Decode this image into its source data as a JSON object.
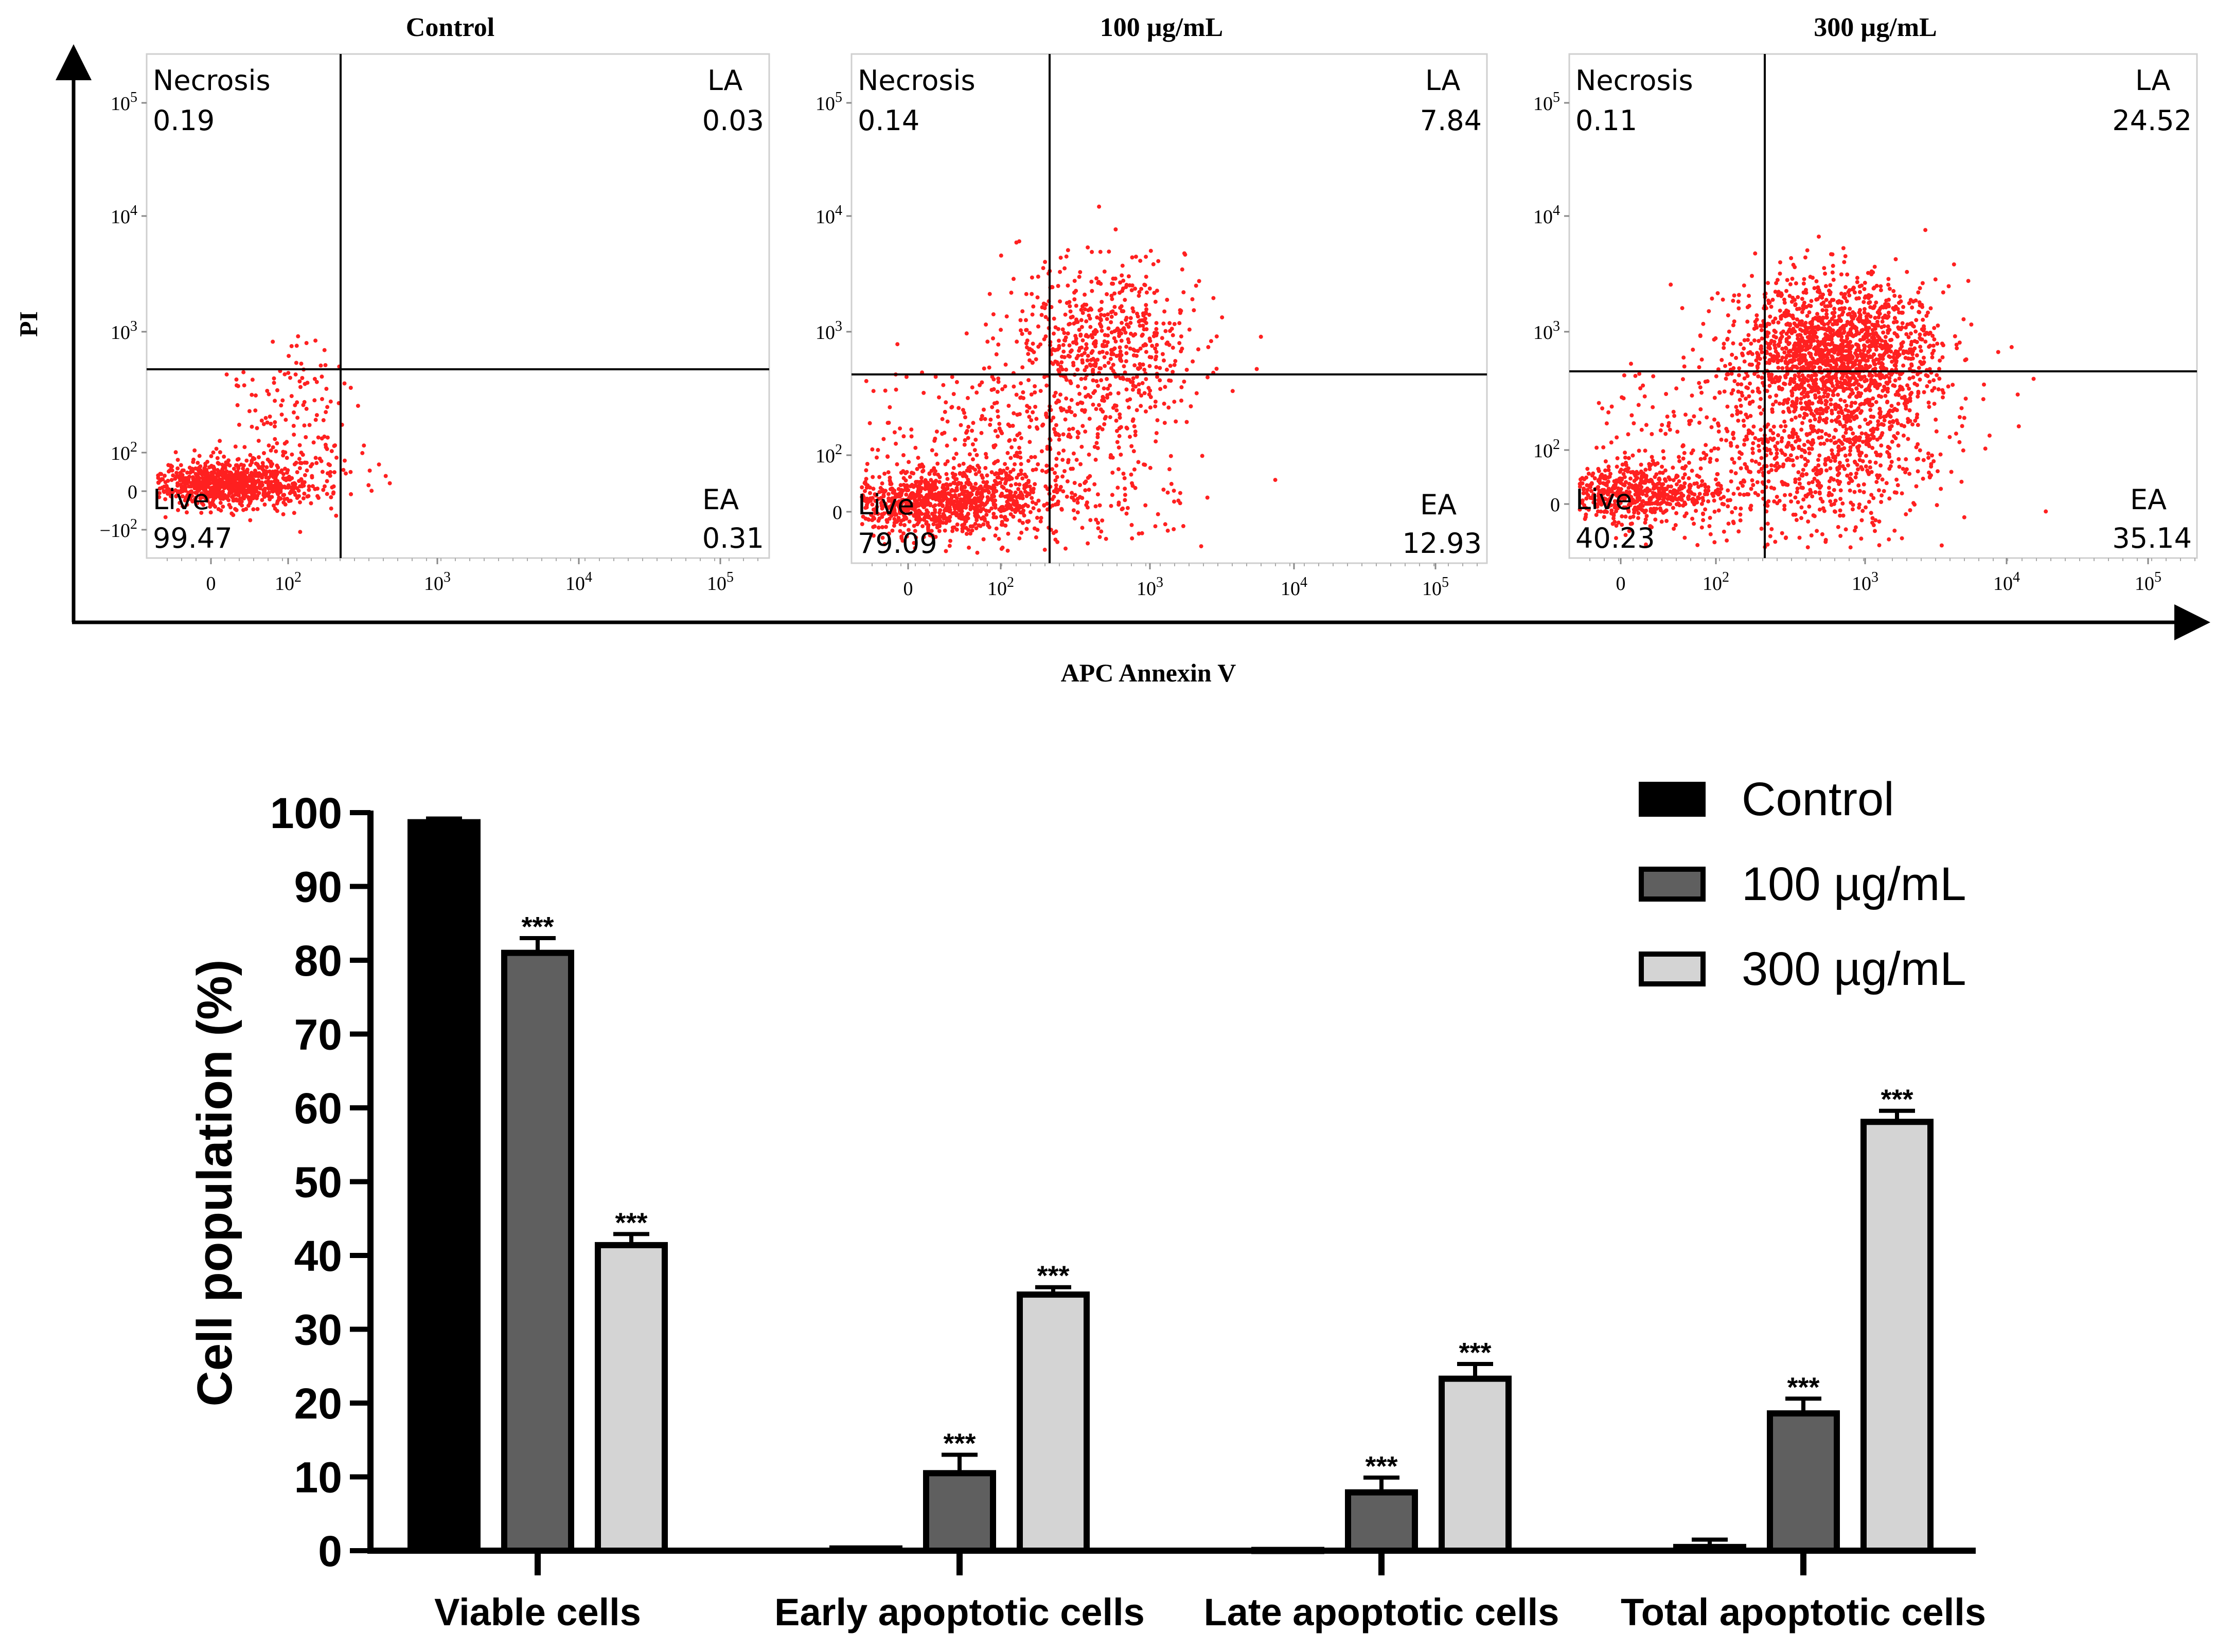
{
  "flow_panels": [
    {
      "title": "Control",
      "quadrants": {
        "necrosis": {
          "label": "Necrosis",
          "value": "0.19"
        },
        "la": {
          "label": "LA",
          "value": "0.03"
        },
        "live": {
          "label": "Live",
          "value": "99.47"
        },
        "ea": {
          "label": "EA",
          "value": "0.31"
        }
      },
      "y_ticks": [
        "10^5",
        "10^4",
        "10^3",
        "10^2",
        "0",
        "−10^2"
      ],
      "x_ticks": [
        "0",
        "10^2",
        "10^3",
        "10^4",
        "10^5"
      ]
    },
    {
      "title": "100 µg/mL",
      "quadrants": {
        "necrosis": {
          "label": "Necrosis",
          "value": "0.14"
        },
        "la": {
          "label": "LA",
          "value": "7.84"
        },
        "live": {
          "label": "Live",
          "value": "79.09"
        },
        "ea": {
          "label": "EA",
          "value": "12.93"
        }
      },
      "y_ticks": [
        "10^5",
        "10^4",
        "10^3",
        "10^2",
        "0"
      ],
      "x_ticks": [
        "0",
        "10^2",
        "10^3",
        "10^4",
        "10^5"
      ]
    },
    {
      "title": "300 µg/mL",
      "quadrants": {
        "necrosis": {
          "label": "Necrosis",
          "value": "0.11"
        },
        "la": {
          "label": "LA",
          "value": "24.52"
        },
        "live": {
          "label": "Live",
          "value": "40.23"
        },
        "ea": {
          "label": "EA",
          "value": "35.14"
        }
      },
      "y_ticks": [
        "10^5",
        "10^4",
        "10^3",
        "10^2",
        "0"
      ],
      "x_ticks": [
        "0",
        "10^2",
        "10^3",
        "10^4",
        "10^5"
      ]
    }
  ],
  "flow_axes": {
    "ylabel": "PI",
    "xlabel": "APC Annexin V"
  },
  "chart_data": {
    "type": "bar",
    "title": "",
    "xlabel": "",
    "ylabel": "Cell population (%)",
    "ylim": [
      0,
      100
    ],
    "yticks": [
      0,
      10,
      20,
      30,
      40,
      50,
      60,
      70,
      80,
      90,
      100
    ],
    "categories": [
      "Viable cells",
      "Early apoptotic cells",
      "Late apoptotic cells",
      "Total apoptotic cells"
    ],
    "series": [
      {
        "name": "Control",
        "color": "#000000",
        "values": [
          98.7,
          0.3,
          0.1,
          0.5
        ],
        "errors": [
          0.5,
          0.1,
          0.1,
          1.0
        ],
        "sig": [
          "",
          "",
          "",
          ""
        ]
      },
      {
        "name": "100 µg/mL",
        "color": "#5f5f5f",
        "values": [
          81.0,
          10.5,
          7.9,
          18.6
        ],
        "errors": [
          2.0,
          2.5,
          2.0,
          2.0
        ],
        "sig": [
          "***",
          "***",
          "***",
          "***"
        ]
      },
      {
        "name": "300 µg/mL",
        "color": "#d4d4d4",
        "values": [
          41.4,
          34.7,
          23.3,
          58.1
        ],
        "errors": [
          1.5,
          1.0,
          2.0,
          1.5
        ],
        "sig": [
          "***",
          "***",
          "***",
          "***"
        ]
      }
    ],
    "legend_position": "top-right"
  }
}
